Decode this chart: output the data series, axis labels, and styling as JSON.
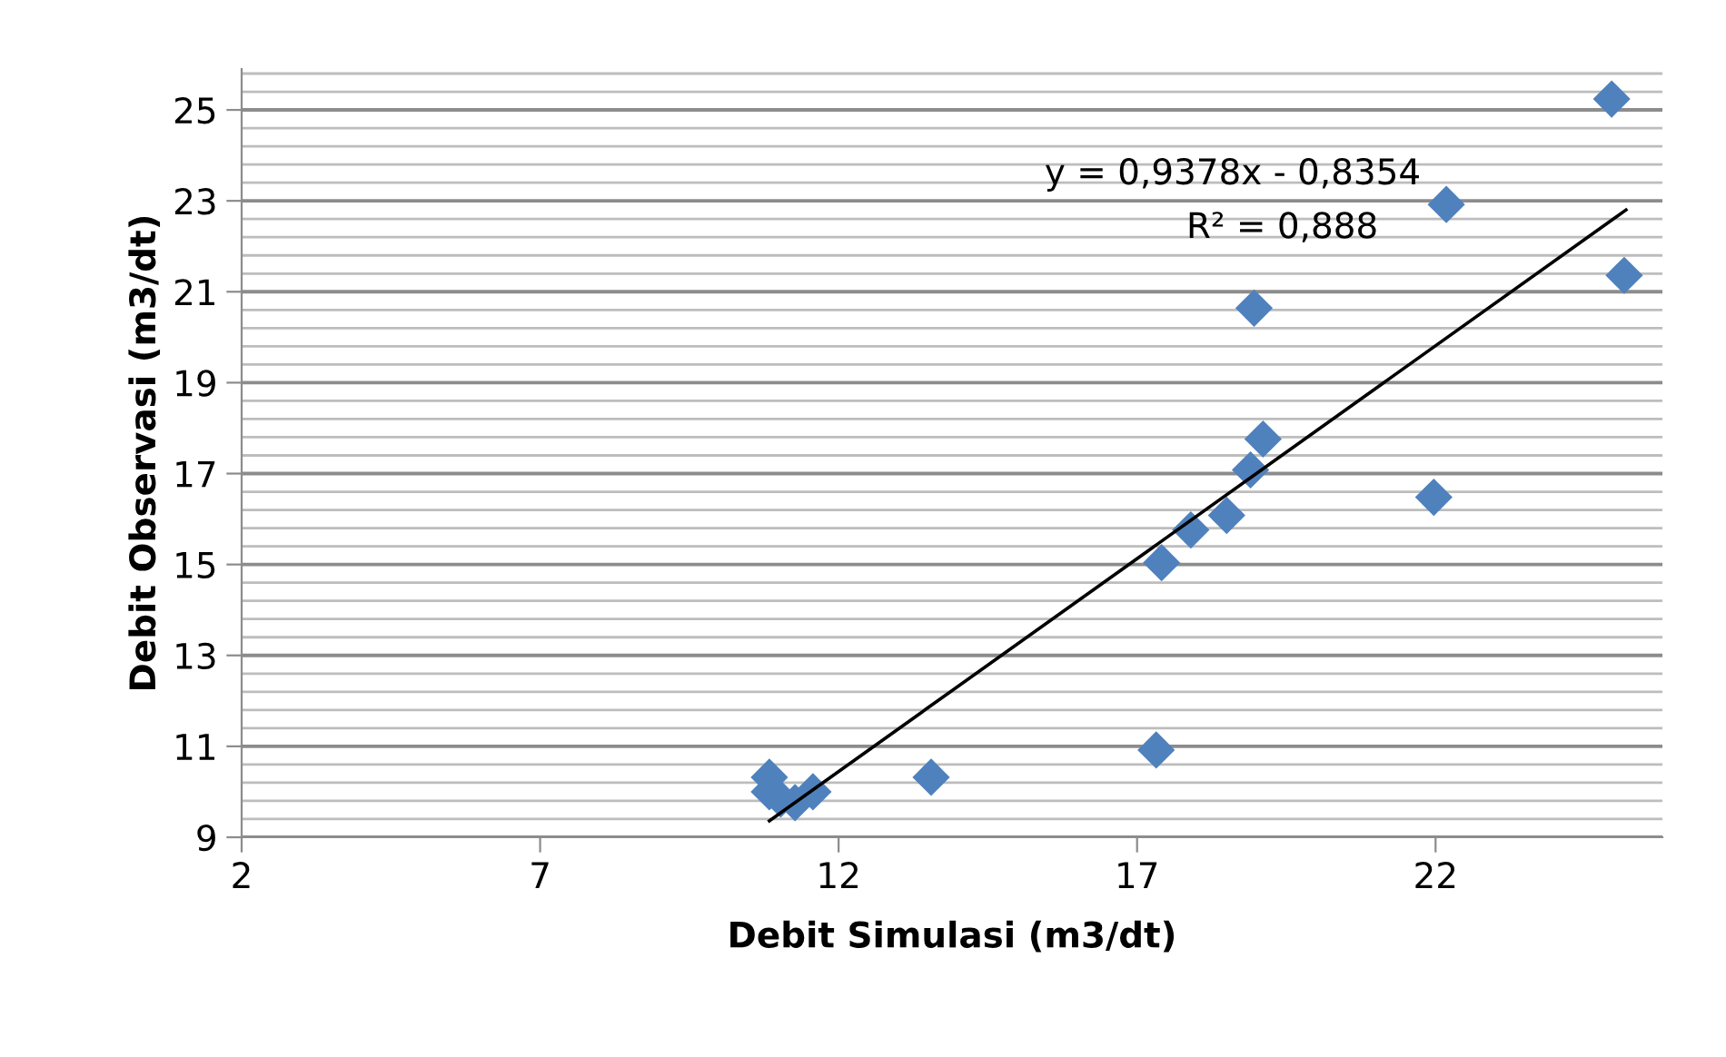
{
  "chart_data": {
    "type": "scatter",
    "xlabel": "Debit Simulasi (m3/dt)",
    "ylabel": "Debit Observasi (m3/dt)",
    "xlim": [
      2,
      25.8
    ],
    "xticks": [
      2,
      7,
      12,
      17,
      22
    ],
    "ylim": [
      9,
      25.9
    ],
    "yticks": [
      9,
      {
        "value": 9.4,
        "label": null
      },
      {
        "value": 9.8,
        "label": null
      },
      {
        "value": 10.2,
        "label": null
      },
      {
        "value": 10.6,
        "label": null
      },
      11,
      {
        "value": 11.4,
        "label": null
      },
      {
        "value": 11.8,
        "label": null
      },
      {
        "value": 12.2,
        "label": null
      },
      {
        "value": 12.6,
        "label": null
      },
      13,
      {
        "value": 13.4,
        "label": null
      },
      {
        "value": 13.8,
        "label": null
      },
      {
        "value": 14.2,
        "label": null
      },
      {
        "value": 14.6,
        "label": null
      },
      15,
      {
        "value": 15.4,
        "label": null
      },
      {
        "value": 15.8,
        "label": null
      },
      {
        "value": 16.2,
        "label": null
      },
      {
        "value": 16.6,
        "label": null
      },
      17,
      {
        "value": 17.4,
        "label": null
      },
      {
        "value": 17.8,
        "label": null
      },
      {
        "value": 18.2,
        "label": null
      },
      {
        "value": 18.6,
        "label": null
      },
      19,
      {
        "value": 19.4,
        "label": null
      },
      {
        "value": 19.8,
        "label": null
      },
      {
        "value": 20.2,
        "label": null
      },
      {
        "value": 20.6,
        "label": null
      },
      21,
      {
        "value": 21.4,
        "label": null
      },
      {
        "value": 21.8,
        "label": null
      },
      {
        "value": 22.2,
        "label": null
      },
      {
        "value": 22.6,
        "label": null
      },
      23,
      {
        "value": 23.4,
        "label": null
      },
      {
        "value": 23.8,
        "label": null
      },
      {
        "value": 24.2,
        "label": null
      },
      {
        "value": 24.6,
        "label": null
      },
      25,
      {
        "value": 25.4,
        "label": null
      },
      {
        "value": 25.8,
        "label": null
      }
    ],
    "grid": "y",
    "marker": "diamond",
    "series": [
      {
        "color": "#4f81bd",
        "x": [
          24.95,
          25.16,
          22.18,
          21.97,
          18.96,
          19.11,
          18.9,
          18.5,
          17.9,
          17.41,
          17.32,
          13.55,
          11.57,
          10.84,
          10.84,
          11.03,
          11.27
        ],
        "values": [
          25.24,
          21.36,
          22.92,
          16.48,
          20.64,
          17.76,
          17.08,
          16.08,
          15.76,
          15.04,
          10.92,
          10.32,
          10.0,
          10.32,
          10.0,
          9.84,
          9.76
        ]
      },
      {
        "type": "line",
        "color": "#000000",
        "marker": "none",
        "x": [
          10.84,
          25.19
        ],
        "values": [
          9.36,
          22.8
        ]
      }
    ],
    "annotations": [
      "y = 0,9378x - 0,8354",
      "R² = 0,888"
    ]
  }
}
